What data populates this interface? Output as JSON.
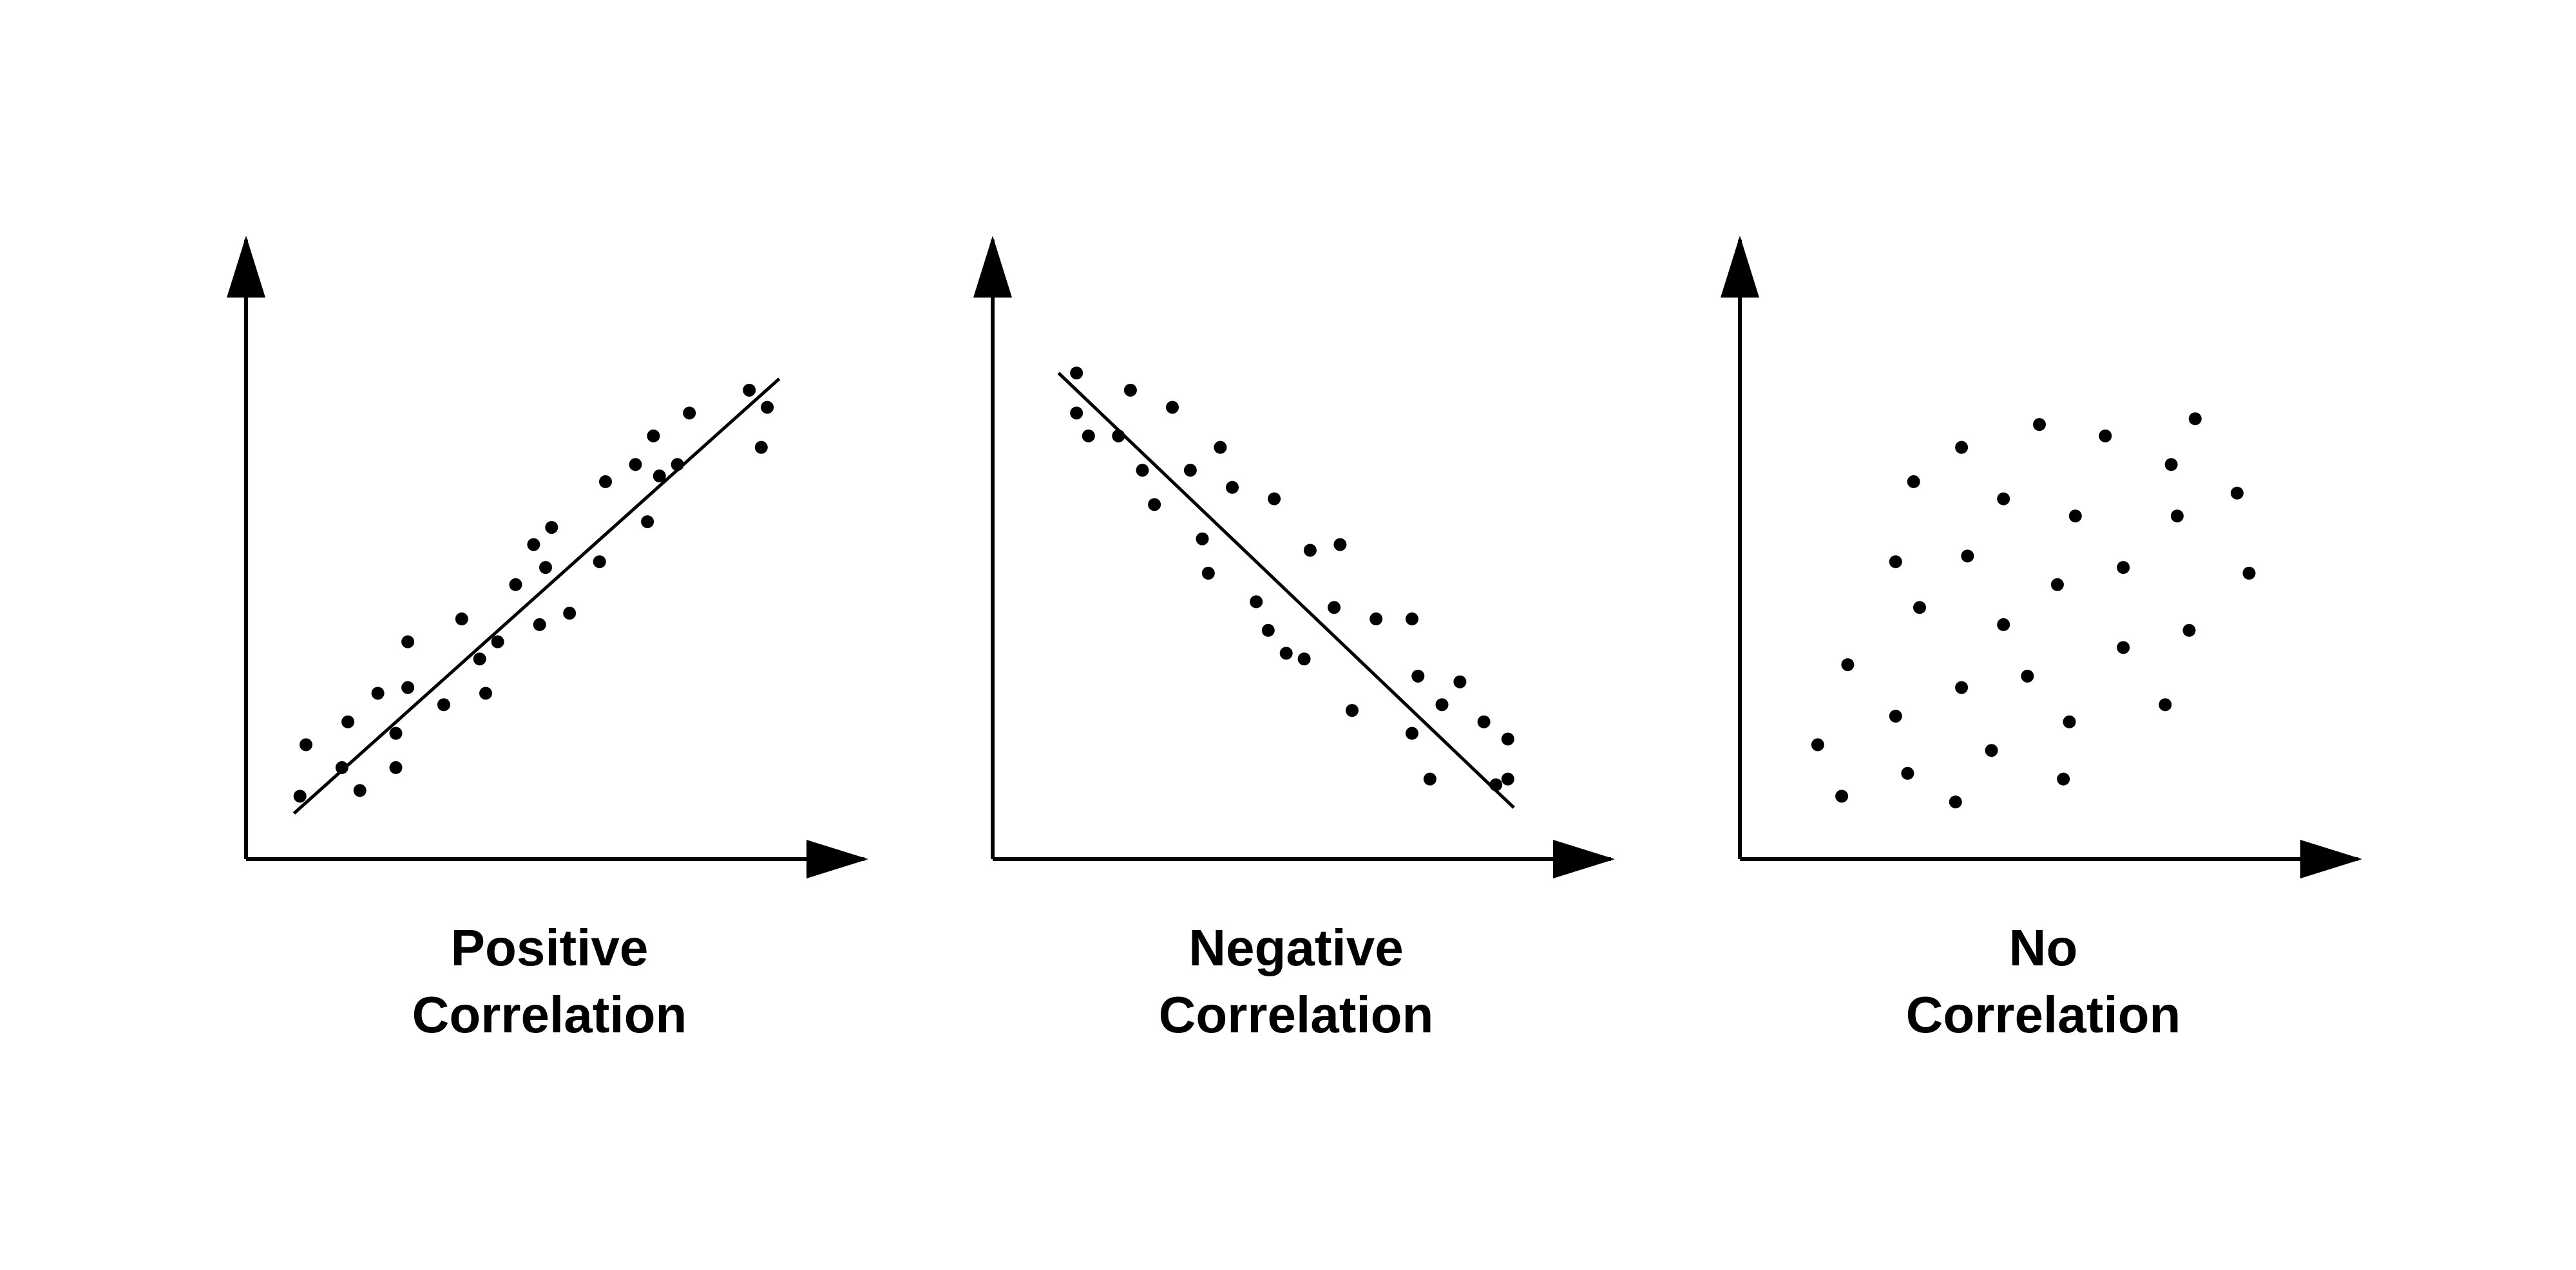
{
  "colors": {
    "background": "#ffffff",
    "ink": "#000000"
  },
  "chart_data": [
    {
      "type": "scatter",
      "title": "",
      "caption_lines": [
        "Positive",
        "Correlation"
      ],
      "xlabel": "",
      "ylabel": "",
      "xlim": [
        0,
        100
      ],
      "ylim": [
        0,
        100
      ],
      "grid": false,
      "axis_ticks": false,
      "trend_line": {
        "x": [
          8,
          89
        ],
        "y": [
          8,
          84
        ]
      },
      "points": [
        [
          9,
          11
        ],
        [
          10,
          20
        ],
        [
          16,
          16
        ],
        [
          17,
          24
        ],
        [
          19,
          12
        ],
        [
          22,
          29
        ],
        [
          25,
          16
        ],
        [
          25,
          22
        ],
        [
          27,
          30
        ],
        [
          27,
          38
        ],
        [
          33,
          27
        ],
        [
          36,
          42
        ],
        [
          39,
          35
        ],
        [
          40,
          29
        ],
        [
          42,
          38
        ],
        [
          45,
          48
        ],
        [
          48,
          55
        ],
        [
          49,
          41
        ],
        [
          50,
          51
        ],
        [
          51,
          58
        ],
        [
          54,
          43
        ],
        [
          59,
          52
        ],
        [
          60,
          66
        ],
        [
          65,
          69
        ],
        [
          67,
          59
        ],
        [
          68,
          74
        ],
        [
          69,
          67
        ],
        [
          72,
          69
        ],
        [
          74,
          78
        ],
        [
          84,
          82
        ],
        [
          86,
          72
        ],
        [
          87,
          79
        ]
      ]
    },
    {
      "type": "scatter",
      "title": "",
      "caption_lines": [
        "Negative",
        "Correlation"
      ],
      "xlabel": "",
      "ylabel": "",
      "xlim": [
        0,
        100
      ],
      "ylim": [
        0,
        100
      ],
      "grid": false,
      "axis_ticks": false,
      "trend_line": {
        "x": [
          11,
          87
        ],
        "y": [
          85,
          9
        ]
      },
      "points": [
        [
          14,
          85
        ],
        [
          14,
          78
        ],
        [
          16,
          74
        ],
        [
          21,
          74
        ],
        [
          23,
          82
        ],
        [
          25,
          68
        ],
        [
          27,
          62
        ],
        [
          30,
          79
        ],
        [
          33,
          68
        ],
        [
          35,
          56
        ],
        [
          36,
          50
        ],
        [
          38,
          72
        ],
        [
          40,
          65
        ],
        [
          44,
          45
        ],
        [
          46,
          40
        ],
        [
          47,
          63
        ],
        [
          49,
          36
        ],
        [
          52,
          35
        ],
        [
          53,
          54
        ],
        [
          57,
          44
        ],
        [
          58,
          55
        ],
        [
          60,
          26
        ],
        [
          64,
          42
        ],
        [
          70,
          42
        ],
        [
          70,
          22
        ],
        [
          71,
          32
        ],
        [
          73,
          14
        ],
        [
          75,
          27
        ],
        [
          78,
          31
        ],
        [
          82,
          24
        ],
        [
          84,
          13
        ],
        [
          86,
          21
        ],
        [
          86,
          14
        ]
      ]
    },
    {
      "type": "scatter",
      "title": "",
      "caption_lines": [
        "No",
        "Correlation"
      ],
      "xlabel": "",
      "ylabel": "",
      "xlim": [
        0,
        100
      ],
      "ylim": [
        0,
        100
      ],
      "grid": false,
      "axis_ticks": false,
      "trend_line": null,
      "points": [
        [
          13,
          20
        ],
        [
          17,
          11
        ],
        [
          18,
          34
        ],
        [
          26,
          25
        ],
        [
          26,
          52
        ],
        [
          28,
          15
        ],
        [
          29,
          66
        ],
        [
          30,
          44
        ],
        [
          36,
          10
        ],
        [
          37,
          30
        ],
        [
          37,
          72
        ],
        [
          38,
          53
        ],
        [
          42,
          19
        ],
        [
          44,
          63
        ],
        [
          44,
          41
        ],
        [
          48,
          32
        ],
        [
          50,
          76
        ],
        [
          53,
          48
        ],
        [
          54,
          14
        ],
        [
          55,
          24
        ],
        [
          56,
          60
        ],
        [
          61,
          74
        ],
        [
          64,
          51
        ],
        [
          64,
          37
        ],
        [
          71,
          27
        ],
        [
          72,
          69
        ],
        [
          73,
          60
        ],
        [
          75,
          40
        ],
        [
          76,
          77
        ],
        [
          83,
          64
        ],
        [
          85,
          50
        ]
      ]
    }
  ]
}
